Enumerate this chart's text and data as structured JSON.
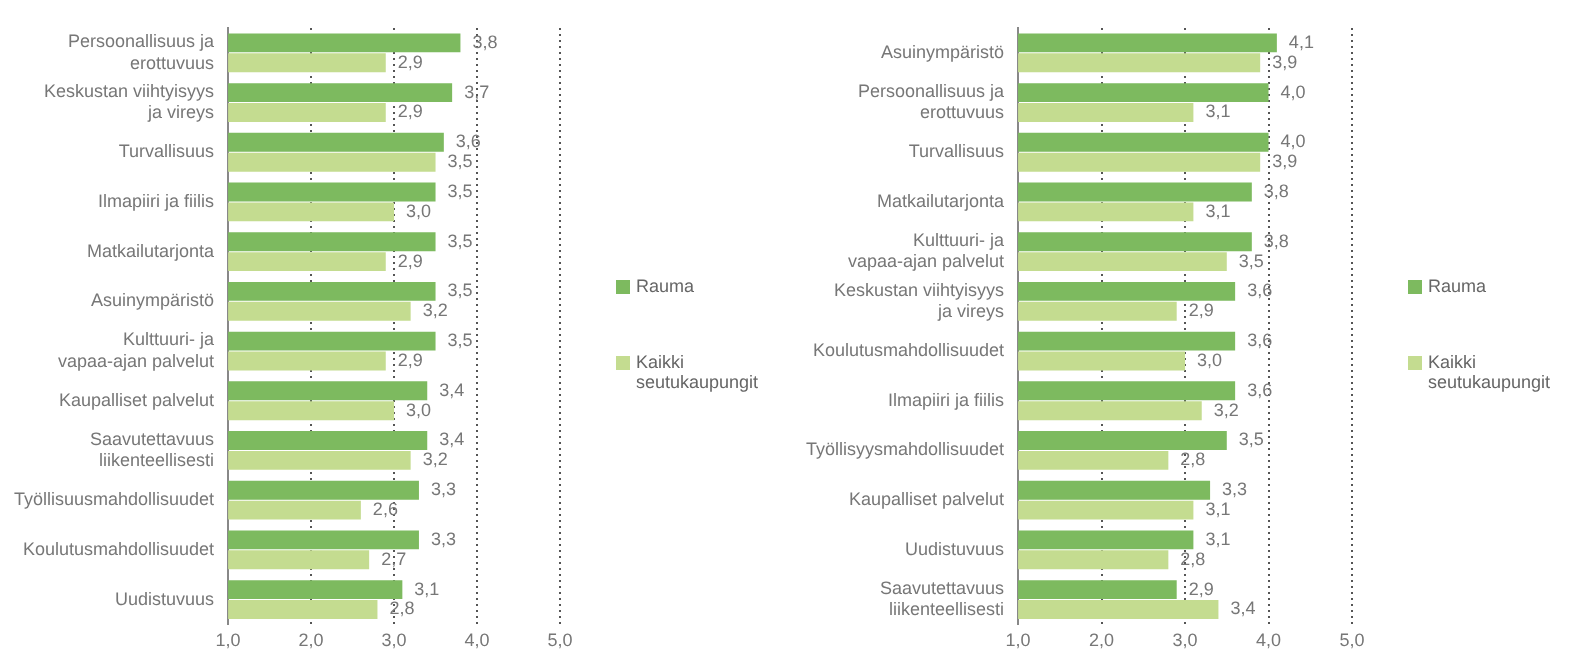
{
  "chart_data": [
    {
      "type": "bar",
      "orientation": "horizontal",
      "categories": [
        "Persoonallisuus ja erottuvuus",
        "Keskustan viihtyisyys ja vireys",
        "Turvallisuus",
        "Ilmapiiri ja fiilis",
        "Matkailutarjonta",
        "Asuinympäristö",
        "Kulttuuri- ja vapaa-ajan palvelut",
        "Kaupalliset palvelut",
        "Saavutettavuus liikenteellisesti",
        "Työllisuusmahdollisuudet",
        "Koulutusmahdollisuudet",
        "Uudistuvuus"
      ],
      "series": [
        {
          "name": "Rauma",
          "color": "#7dba5f",
          "values": [
            3.8,
            3.7,
            3.6,
            3.5,
            3.5,
            3.5,
            3.5,
            3.4,
            3.4,
            3.3,
            3.3,
            3.1
          ],
          "value_labels": [
            "3,8",
            "3,7",
            "3,6",
            "3,5",
            "3,5",
            "3,5",
            "3,5",
            "3,4",
            "3,4",
            "3,3",
            "3,3",
            "3,1"
          ]
        },
        {
          "name": "Kaikki seutukaupungit",
          "color": "#c4dc90",
          "values": [
            2.9,
            2.9,
            3.5,
            3.0,
            2.9,
            3.2,
            2.9,
            3.0,
            3.2,
            2.6,
            2.7,
            2.8
          ],
          "value_labels": [
            "2,9",
            "2,9",
            "3,5",
            "3,0",
            "2,9",
            "3,2",
            "2,9",
            "3,0",
            "3,2",
            "2,6",
            "2,7",
            "2,8"
          ]
        }
      ],
      "xlim": [
        1,
        5
      ],
      "xticks": [
        {
          "value": 1,
          "label": "1,0"
        },
        {
          "value": 2,
          "label": "2,0"
        },
        {
          "value": 3,
          "label": "3,0"
        },
        {
          "value": 4,
          "label": "4,0"
        },
        {
          "value": 5,
          "label": "5,0"
        }
      ],
      "grid": "x",
      "legend": "right"
    },
    {
      "type": "bar",
      "orientation": "horizontal",
      "categories": [
        "Asuinympäristö",
        "Persoonallisuus ja erottuvuus",
        "Turvallisuus",
        "Matkailutarjonta",
        "Kulttuuri- ja vapaa-ajan palvelut",
        "Keskustan viihtyisyys ja vireys",
        "Koulutusmahdollisuudet",
        "Ilmapiiri ja fiilis",
        "Työllisyysmahdollisuudet",
        "Kaupalliset palvelut",
        "Uudistuvuus",
        "Saavutettavuus liikenteellisesti"
      ],
      "series": [
        {
          "name": "Rauma",
          "color": "#7dba5f",
          "values": [
            4.1,
            4.0,
            4.0,
            3.8,
            3.8,
            3.6,
            3.6,
            3.6,
            3.5,
            3.3,
            3.1,
            2.9
          ],
          "value_labels": [
            "4,1",
            "4,0",
            "4,0",
            "3,8",
            "3,8",
            "3,6",
            "3,6",
            "3,6",
            "3,5",
            "3,3",
            "3,1",
            "2,9"
          ]
        },
        {
          "name": "Kaikki seutukaupungit",
          "color": "#c4dc90",
          "values": [
            3.9,
            3.1,
            3.9,
            3.1,
            3.5,
            2.9,
            3.0,
            3.2,
            2.8,
            3.1,
            2.8,
            3.4
          ],
          "value_labels": [
            "3,9",
            "3,1",
            "3,9",
            "3,1",
            "3,5",
            "2,9",
            "3,0",
            "3,2",
            "2,8",
            "3,1",
            "2,8",
            "3,4"
          ]
        }
      ],
      "xlim": [
        1,
        5
      ],
      "xticks": [
        {
          "value": 1,
          "label": "1,0"
        },
        {
          "value": 2,
          "label": "2,0"
        },
        {
          "value": 3,
          "label": "3,0"
        },
        {
          "value": 4,
          "label": "4,0"
        },
        {
          "value": 5,
          "label": "5,0"
        }
      ],
      "grid": "x",
      "legend": "right"
    }
  ]
}
